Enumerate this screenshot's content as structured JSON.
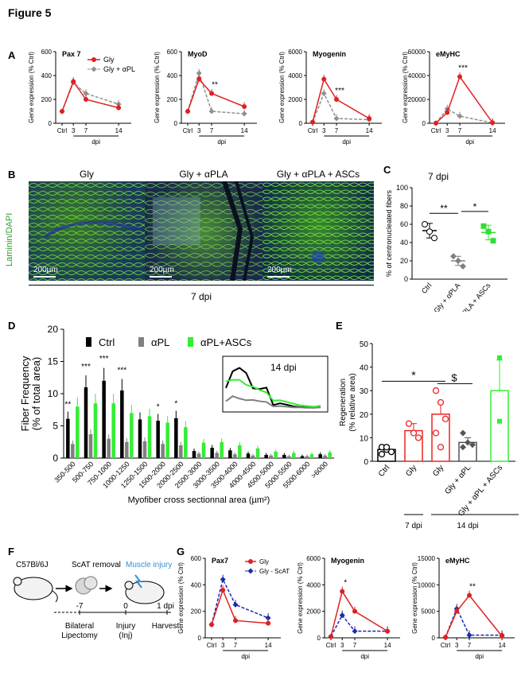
{
  "figure_title": "Figure 5",
  "panels": {
    "A": "A",
    "B": "B",
    "C": "C",
    "D": "D",
    "E": "E",
    "F": "F",
    "G": "G"
  },
  "common": {
    "ylabel_gene": "Gene expression (% Ctrl)",
    "xlabel_dpi": "dpi",
    "xticks": [
      "Ctrl",
      "3",
      "7",
      "14"
    ]
  },
  "A": {
    "legend": [
      "Gly",
      "Gly + αPL"
    ],
    "charts": [
      {
        "title": "Pax 7",
        "ymax": 600,
        "yticks": [
          "0",
          "200",
          "400",
          "600"
        ],
        "gly": [
          100,
          350,
          200,
          130
        ],
        "apl": [
          100,
          340,
          250,
          160
        ],
        "stars": []
      },
      {
        "title": "MyoD",
        "ymax": 600,
        "yticks": [
          "0",
          "200",
          "400",
          "600"
        ],
        "gly": [
          100,
          370,
          250,
          140
        ],
        "apl": [
          100,
          420,
          100,
          80
        ],
        "stars": [
          {
            "idx": 2,
            "text": "**"
          }
        ]
      },
      {
        "title": "Myogenin",
        "ymax": 6000,
        "yticks": [
          "0",
          "2000",
          "4000",
          "6000"
        ],
        "gly": [
          100,
          3700,
          2000,
          400
        ],
        "apl": [
          100,
          2500,
          400,
          300
        ],
        "stars": [
          {
            "idx": 2,
            "text": "***"
          }
        ]
      },
      {
        "title": "eMyHC",
        "ymax": 60000,
        "yticks": [
          "0",
          "20000",
          "40000",
          "60000"
        ],
        "gly": [
          100,
          9000,
          39000,
          500
        ],
        "apl": [
          100,
          12000,
          6000,
          300
        ],
        "stars": [
          {
            "idx": 2,
            "text": "***"
          }
        ]
      }
    ]
  },
  "B": {
    "side_label": "Laminin/DAPI",
    "images": [
      {
        "title": "Gly",
        "scale": "200µm"
      },
      {
        "title": "Gly + αPLA",
        "scale": "200µm"
      },
      {
        "title": "Gly + αPLA + ASCs",
        "scale": "200µm"
      }
    ],
    "caption": "7 dpi"
  },
  "C": {
    "title": "7 dpi",
    "ylabel": "% of centronucleated fibers",
    "ymax": 100,
    "yticks": [
      "0",
      "20",
      "40",
      "60",
      "80",
      "100"
    ],
    "groups": [
      {
        "label": "Ctrl",
        "mean": 53,
        "sem": 8,
        "points": [
          60,
          52,
          45
        ],
        "color": "#000000",
        "filled": false
      },
      {
        "label": "Gly + αPLA",
        "mean": 20,
        "sem": 5,
        "points": [
          25,
          20,
          14
        ],
        "color": "#808080",
        "filled": true
      },
      {
        "label": "Gly + αPLA + ASCs",
        "mean": 51,
        "sem": 8,
        "points": [
          58,
          52,
          42
        ],
        "color": "#33dd33",
        "filled": true
      }
    ],
    "sig": [
      {
        "text": "**"
      },
      {
        "text": "*"
      }
    ]
  },
  "D": {
    "ylabel_lines": [
      "Fiber Frequency",
      "(% of total area)"
    ],
    "xlabel": "Myofiber cross sectionnal area (µm²)",
    "ymax": 20,
    "yticks": [
      "0",
      "5",
      "10",
      "15",
      "20"
    ],
    "legend": [
      "Ctrl",
      "αPL",
      "αPL+ASCs"
    ],
    "categories": [
      "350-500",
      "500-750",
      "750-1000",
      "1000-1250",
      "1250-1500",
      "1500-2000",
      "2000-2500",
      "2500-3000",
      "3000-3500",
      "3500-4000",
      "4000-4500",
      "4500-5000",
      "5000-5500",
      "5500-6000",
      ">6000"
    ],
    "series": [
      {
        "name": "Ctrl",
        "color": "#000000",
        "values": [
          6.1,
          11,
          12,
          10.5,
          6,
          5.8,
          6.2,
          1.1,
          1.6,
          1.2,
          0.7,
          0.5,
          0.5,
          0.3,
          0.6
        ]
      },
      {
        "name": "αPL",
        "color": "#808080",
        "values": [
          2.2,
          3.7,
          3,
          2.5,
          2.6,
          2.2,
          2,
          0.7,
          0.8,
          0.6,
          0.4,
          0.4,
          0.3,
          0.3,
          0.4
        ]
      },
      {
        "name": "αPL+ASCs",
        "color": "#33ee33",
        "values": [
          8,
          8.5,
          8.5,
          7,
          6.5,
          5.5,
          4.8,
          2.4,
          2.5,
          2,
          1.5,
          1,
          0.8,
          0.6,
          0.9
        ]
      }
    ],
    "stars": [
      {
        "idx": 0,
        "text": "**"
      },
      {
        "idx": 1,
        "text": "***"
      },
      {
        "idx": 2,
        "text": "***"
      },
      {
        "idx": 3,
        "text": "***"
      },
      {
        "idx": 5,
        "text": "*"
      },
      {
        "idx": 6,
        "text": "*"
      }
    ],
    "inset_title": "14 dpi"
  },
  "E": {
    "ylabel_lines": [
      "Regeneration",
      "(% relative area)"
    ],
    "ymax": 50,
    "yticks": [
      "0",
      "10",
      "20",
      "30",
      "40",
      "50"
    ],
    "bars": [
      {
        "label": "Ctrl",
        "mean": 5,
        "sem": 1.5,
        "color": "#000000",
        "points": [
          6,
          5,
          4,
          3,
          6
        ]
      },
      {
        "label": "Gly",
        "mean": 13,
        "sem": 3,
        "color": "#ee2222",
        "points": [
          16,
          12,
          10
        ]
      },
      {
        "label": "Gly",
        "mean": 20,
        "sem": 5,
        "color": "#ee2222",
        "points": [
          30,
          25,
          18,
          12,
          6
        ]
      },
      {
        "label": "Gly + αPL",
        "mean": 8,
        "sem": 2,
        "color": "#555555",
        "points": [
          12,
          8,
          7,
          6
        ]
      },
      {
        "label": "Gly + αPL + ASCs",
        "mean": 30,
        "sem": 13,
        "color": "#33ee33",
        "points": [
          44,
          17
        ]
      }
    ],
    "sig": [
      {
        "text": "*"
      },
      {
        "text": "$"
      }
    ],
    "groups": [
      "7 dpi",
      "14 dpi"
    ]
  },
  "F": {
    "mouse": "C57Bl/6J",
    "step1": "ScAT removal",
    "step2": "Muscle injury",
    "ticks": [
      "-7",
      "0",
      "1 dpi"
    ],
    "labels": [
      "Bilateral",
      "Lipectomy",
      "Injury",
      "(Inj)",
      "Harvest"
    ]
  },
  "G": {
    "legend": [
      "Gly",
      "Gly - ScAT"
    ],
    "charts": [
      {
        "title": "Pax7",
        "ymax": 600,
        "yticks": [
          "0",
          "200",
          "400",
          "600"
        ],
        "gly": [
          100,
          360,
          130,
          110
        ],
        "scat": [
          100,
          440,
          250,
          150
        ],
        "stars": []
      },
      {
        "title": "Myogenin",
        "ymax": 6000,
        "yticks": [
          "0",
          "2000",
          "4000",
          "6000"
        ],
        "gly": [
          100,
          3500,
          2000,
          500
        ],
        "scat": [
          100,
          1700,
          500,
          500
        ],
        "stars": [
          {
            "idx": 1,
            "text": "*"
          }
        ]
      },
      {
        "title": "eMyHC",
        "ymax": 15000,
        "yticks": [
          "0",
          "5000",
          "10000",
          "15000"
        ],
        "gly": [
          100,
          5000,
          8000,
          300
        ],
        "scat": [
          100,
          5500,
          500,
          500
        ],
        "stars": [
          {
            "idx": 2,
            "text": "**"
          }
        ]
      }
    ]
  }
}
